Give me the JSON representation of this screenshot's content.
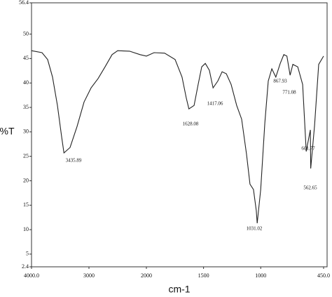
{
  "chart_data": {
    "type": "line",
    "xlabel": "cm-1",
    "ylabel": "%T",
    "x": [
      4000,
      3817,
      3720,
      3634,
      3549,
      3476,
      3435.89,
      3329,
      3207,
      3085,
      2963,
      2841,
      2720,
      2598,
      2500,
      2293,
      2110,
      2000,
      1933,
      1841,
      1749,
      1688,
      1651,
      1628.08,
      1583,
      1547,
      1516,
      1485,
      1449,
      1417.06,
      1375,
      1338,
      1301,
      1259,
      1210,
      1167,
      1124,
      1094,
      1063,
      1039,
      1031.02,
      1000,
      964,
      934,
      903,
      867.93,
      829,
      798,
      771.08,
      743,
      719,
      676,
      633,
      601.77,
      584,
      566,
      562.65,
      529,
      493,
      450
    ],
    "series": [
      {
        "name": "%T",
        "color": "#222222",
        "values": [
          46.6,
          46.2,
          44.8,
          41.2,
          35.4,
          29,
          25.7,
          26.8,
          31.1,
          36.1,
          39.0,
          40.9,
          43.3,
          45.8,
          46.6,
          46.5,
          45.8,
          45.5,
          46.2,
          46.1,
          44.8,
          41.2,
          36.9,
          34.7,
          35.4,
          39.7,
          43.3,
          44.0,
          42.6,
          39.0,
          40.4,
          42.3,
          41.9,
          39.7,
          35.4,
          32.6,
          25.4,
          19.3,
          18.2,
          13.9,
          11.3,
          18.2,
          31.8,
          40.4,
          42.9,
          41.2,
          44.0,
          45.8,
          45.5,
          41.6,
          43.8,
          43.3,
          39.7,
          26.0,
          28.2,
          30.4,
          22.5,
          31.3,
          43.8,
          45.5
        ]
      }
    ],
    "xlim": [
      4000,
      450
    ],
    "x_scale_break": 2000,
    "xticks": [
      {
        "value": 4000,
        "label": "4000.0"
      },
      3000,
      2000,
      1500,
      1000,
      {
        "value": 450,
        "label": "450.0"
      }
    ],
    "ylim": [
      2.4,
      56.4
    ],
    "yticks": [
      2.4,
      5,
      10,
      15,
      20,
      25,
      30,
      35,
      40,
      45,
      50,
      56.4
    ],
    "annotations": [
      "3435.89",
      "1628.08",
      "1417.06",
      "1031.02",
      "867.93",
      "771.08",
      "601.77",
      "562.65"
    ]
  }
}
